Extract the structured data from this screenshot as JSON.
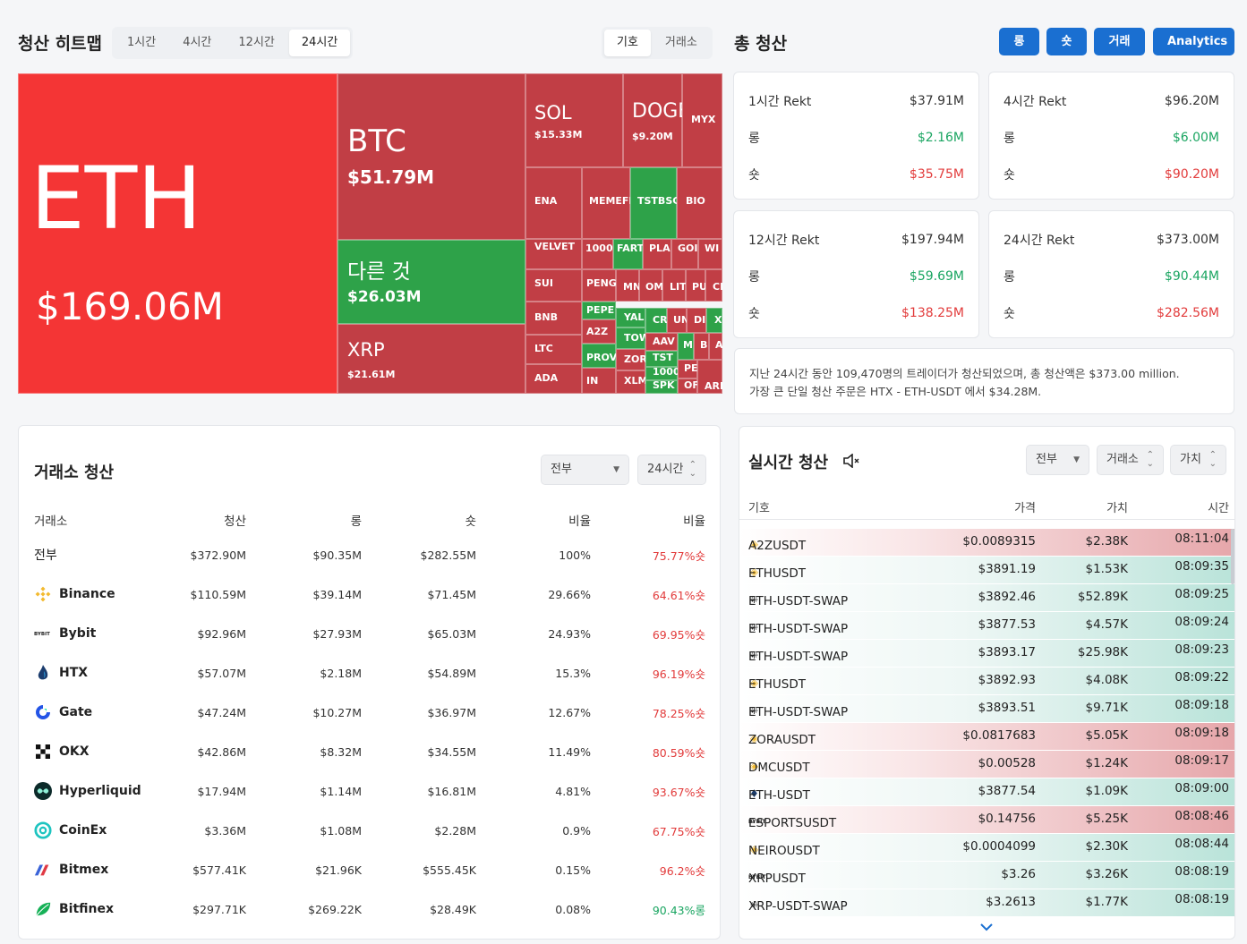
{
  "heatmap": {
    "title": "청산 히트맵",
    "time_tabs": [
      "1시간",
      "4시간",
      "12시간",
      "24시간"
    ],
    "active_tab": "24시간",
    "view_tabs": [
      "기호",
      "거래소"
    ],
    "active_view": "기호",
    "tiles": {
      "eth": {
        "name": "ETH",
        "value": "$169.06M"
      },
      "btc": {
        "name": "BTC",
        "value": "$51.79M"
      },
      "other": {
        "name": "다른 것",
        "value": "$26.03M"
      },
      "xrp": {
        "name": "XRP",
        "value": "$21.61M"
      },
      "sol": {
        "name": "SOL",
        "value": "$15.33M"
      },
      "doge": {
        "name": "DOGE",
        "value": "$9.20M"
      },
      "small": [
        "MYX",
        "ENA",
        "MEMEFI",
        "TSTBSC",
        "BIO",
        "VELVET",
        "1000",
        "FART",
        "PLA",
        "GOI",
        "WI",
        "SUI",
        "PENG",
        "MN",
        "OM",
        "LIT",
        "PU",
        "CE",
        "BNB",
        "PEPE",
        "YAL",
        "CR",
        "UN",
        "DI",
        "XI",
        "A2Z",
        "TOW",
        "AAV",
        "M",
        "B",
        "A",
        "LTC",
        "PROV",
        "ZOR",
        "TST",
        "ADA",
        "IN",
        "XLM",
        "1000",
        "SPK",
        "PE",
        "OF",
        "ARI"
      ]
    }
  },
  "total": {
    "title": "총 청산",
    "buttons": [
      "롱",
      "숏",
      "거래",
      "Analytics"
    ],
    "cards": [
      {
        "label": "1시간 Rekt",
        "total": "$37.91M",
        "long_label": "롱",
        "long": "$2.16M",
        "short_label": "숏",
        "short": "$35.75M"
      },
      {
        "label": "4시간 Rekt",
        "total": "$96.20M",
        "long_label": "롱",
        "long": "$6.00M",
        "short_label": "숏",
        "short": "$90.20M"
      },
      {
        "label": "12시간 Rekt",
        "total": "$197.94M",
        "long_label": "롱",
        "long": "$59.69M",
        "short_label": "숏",
        "short": "$138.25M"
      },
      {
        "label": "24시간 Rekt",
        "total": "$373.00M",
        "long_label": "롱",
        "long": "$90.44M",
        "short_label": "숏",
        "short": "$282.56M"
      }
    ],
    "summary_line1": "지난 24시간 동안 109,470명의 트레이더가 청산되었으며, 총 청산액은 $373.00 million.",
    "summary_line2": "가장 큰 단일 청산 주문은 HTX - ETH-USDT 에서 $34.28M."
  },
  "exchange": {
    "title": "거래소 청산",
    "filter": "전부",
    "period": "24시간",
    "headers": [
      "거래소",
      "청산",
      "롱",
      "숏",
      "비율",
      "비율"
    ],
    "rows": [
      {
        "name": "전부",
        "icon": "",
        "liq": "$372.90M",
        "long": "$90.35M",
        "short": "$282.55M",
        "share": "100%",
        "ratio": "75.77%숏",
        "side": "short"
      },
      {
        "name": "Binance",
        "icon": "binance-icon",
        "liq": "$110.59M",
        "long": "$39.14M",
        "short": "$71.45M",
        "share": "29.66%",
        "ratio": "64.61%숏",
        "side": "short"
      },
      {
        "name": "Bybit",
        "icon": "bybit-icon",
        "liq": "$92.96M",
        "long": "$27.93M",
        "short": "$65.03M",
        "share": "24.93%",
        "ratio": "69.95%숏",
        "side": "short"
      },
      {
        "name": "HTX",
        "icon": "htx-icon",
        "liq": "$57.07M",
        "long": "$2.18M",
        "short": "$54.89M",
        "share": "15.3%",
        "ratio": "96.19%숏",
        "side": "short"
      },
      {
        "name": "Gate",
        "icon": "gate-icon",
        "liq": "$47.24M",
        "long": "$10.27M",
        "short": "$36.97M",
        "share": "12.67%",
        "ratio": "78.25%숏",
        "side": "short"
      },
      {
        "name": "OKX",
        "icon": "okx-icon",
        "liq": "$42.86M",
        "long": "$8.32M",
        "short": "$34.55M",
        "share": "11.49%",
        "ratio": "80.59%숏",
        "side": "short"
      },
      {
        "name": "Hyperliquid",
        "icon": "hyperliquid-icon",
        "liq": "$17.94M",
        "long": "$1.14M",
        "short": "$16.81M",
        "share": "4.81%",
        "ratio": "93.67%숏",
        "side": "short"
      },
      {
        "name": "CoinEx",
        "icon": "coinex-icon",
        "liq": "$3.36M",
        "long": "$1.08M",
        "short": "$2.28M",
        "share": "0.9%",
        "ratio": "67.75%숏",
        "side": "short"
      },
      {
        "name": "Bitmex",
        "icon": "bitmex-icon",
        "liq": "$577.41K",
        "long": "$21.96K",
        "short": "$555.45K",
        "share": "0.15%",
        "ratio": "96.2%숏",
        "side": "short"
      },
      {
        "name": "Bitfinex",
        "icon": "bitfinex-icon",
        "liq": "$297.71K",
        "long": "$269.22K",
        "short": "$28.49K",
        "share": "0.08%",
        "ratio": "90.43%롱",
        "side": "long"
      }
    ]
  },
  "realtime": {
    "title": "실시간 청산",
    "filter_all": "전부",
    "filter_exchange": "거래소",
    "filter_value": "가치",
    "headers": [
      "기호",
      "가격",
      "가치",
      "시간"
    ],
    "rows": [
      {
        "symbol": "A2ZUSDT",
        "icon": "binance",
        "price": "$0.0089315",
        "value": "$2.38K",
        "time": "08:11:04",
        "side": "short"
      },
      {
        "symbol": "ETHUSDT",
        "icon": "binance",
        "price": "$3891.19",
        "value": "$1.53K",
        "time": "08:09:35",
        "side": "long"
      },
      {
        "symbol": "ETH-USDT-SWAP",
        "icon": "okx",
        "price": "$3892.46",
        "value": "$52.89K",
        "time": "08:09:25",
        "side": "long"
      },
      {
        "symbol": "ETH-USDT-SWAP",
        "icon": "okx",
        "price": "$3877.53",
        "value": "$4.57K",
        "time": "08:09:24",
        "side": "long"
      },
      {
        "symbol": "ETH-USDT-SWAP",
        "icon": "okx",
        "price": "$3893.17",
        "value": "$25.98K",
        "time": "08:09:23",
        "side": "long"
      },
      {
        "symbol": "ETHUSDT",
        "icon": "binance",
        "price": "$3892.93",
        "value": "$4.08K",
        "time": "08:09:22",
        "side": "long"
      },
      {
        "symbol": "ETH-USDT-SWAP",
        "icon": "okx",
        "price": "$3893.51",
        "value": "$9.71K",
        "time": "08:09:18",
        "side": "long"
      },
      {
        "symbol": "ZORAUSDT",
        "icon": "binance",
        "price": "$0.0817683",
        "value": "$5.05K",
        "time": "08:09:18",
        "side": "short"
      },
      {
        "symbol": "DMCUSDT",
        "icon": "binance",
        "price": "$0.00528",
        "value": "$1.24K",
        "time": "08:09:17",
        "side": "short"
      },
      {
        "symbol": "ETH-USDT",
        "icon": "htx",
        "price": "$3877.54",
        "value": "$1.09K",
        "time": "08:09:00",
        "side": "long"
      },
      {
        "symbol": "ESPORTSUSDT",
        "icon": "bybit",
        "price": "$0.14756",
        "value": "$5.25K",
        "time": "08:08:46",
        "side": "short"
      },
      {
        "symbol": "NEIROUSDT",
        "icon": "binance",
        "price": "$0.0004099",
        "value": "$2.30K",
        "time": "08:08:44",
        "side": "long"
      },
      {
        "symbol": "XRPUSDT",
        "icon": "bybit",
        "price": "$3.26",
        "value": "$3.26K",
        "time": "08:08:19",
        "side": "long"
      },
      {
        "symbol": "XRP-USDT-SWAP",
        "icon": "okx",
        "price": "$3.2613",
        "value": "$1.77K",
        "time": "08:08:19",
        "side": "long"
      }
    ]
  },
  "colors": {
    "accent": "#1a6fd1",
    "tile_red": "#c13e45",
    "tile_bright_red": "#f43535",
    "tile_green": "#2ea249",
    "long_text": "#1aa561",
    "short_text": "#e23b3b"
  }
}
